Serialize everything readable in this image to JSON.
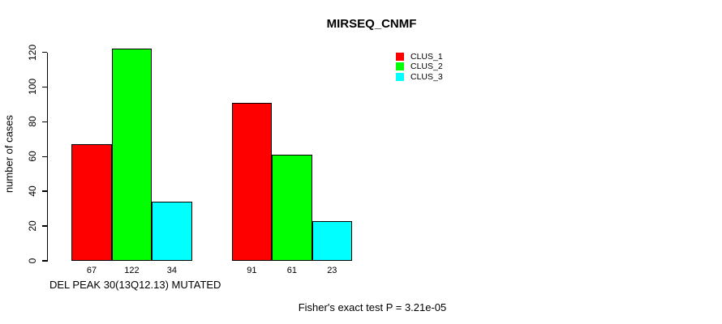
{
  "title": "MIRSEQ_CNMF",
  "footer": "Fisher's exact test P = 3.21e-05",
  "legend": {
    "position": "top-right",
    "items": [
      {
        "label": "CLUS_1",
        "color": "#ff0000"
      },
      {
        "label": "CLUS_2",
        "color": "#00ff00"
      },
      {
        "label": "CLUS_3",
        "color": "#00ffff"
      }
    ]
  },
  "chart_data": {
    "type": "bar",
    "title": "MIRSEQ_CNMF",
    "xlabel": "DEL PEAK 30(13Q12.13) MUTATED",
    "ylabel": "number of cases",
    "ylim": [
      0,
      120
    ],
    "yticks": [
      0,
      20,
      40,
      60,
      80,
      100,
      120
    ],
    "grid": false,
    "legend_position": "top-right",
    "categories": [
      "",
      ""
    ],
    "series": [
      {
        "name": "CLUS_1",
        "color": "#ff0000",
        "values": [
          67,
          91
        ]
      },
      {
        "name": "CLUS_2",
        "color": "#00ff00",
        "values": [
          122,
          61
        ]
      },
      {
        "name": "CLUS_3",
        "color": "#00ffff",
        "values": [
          34,
          23
        ]
      }
    ],
    "bar_value_labels": [
      [
        "67",
        "122",
        "34"
      ],
      [
        "91",
        "61",
        "23"
      ]
    ],
    "annotation": "Fisher's exact test P = 3.21e-05"
  }
}
